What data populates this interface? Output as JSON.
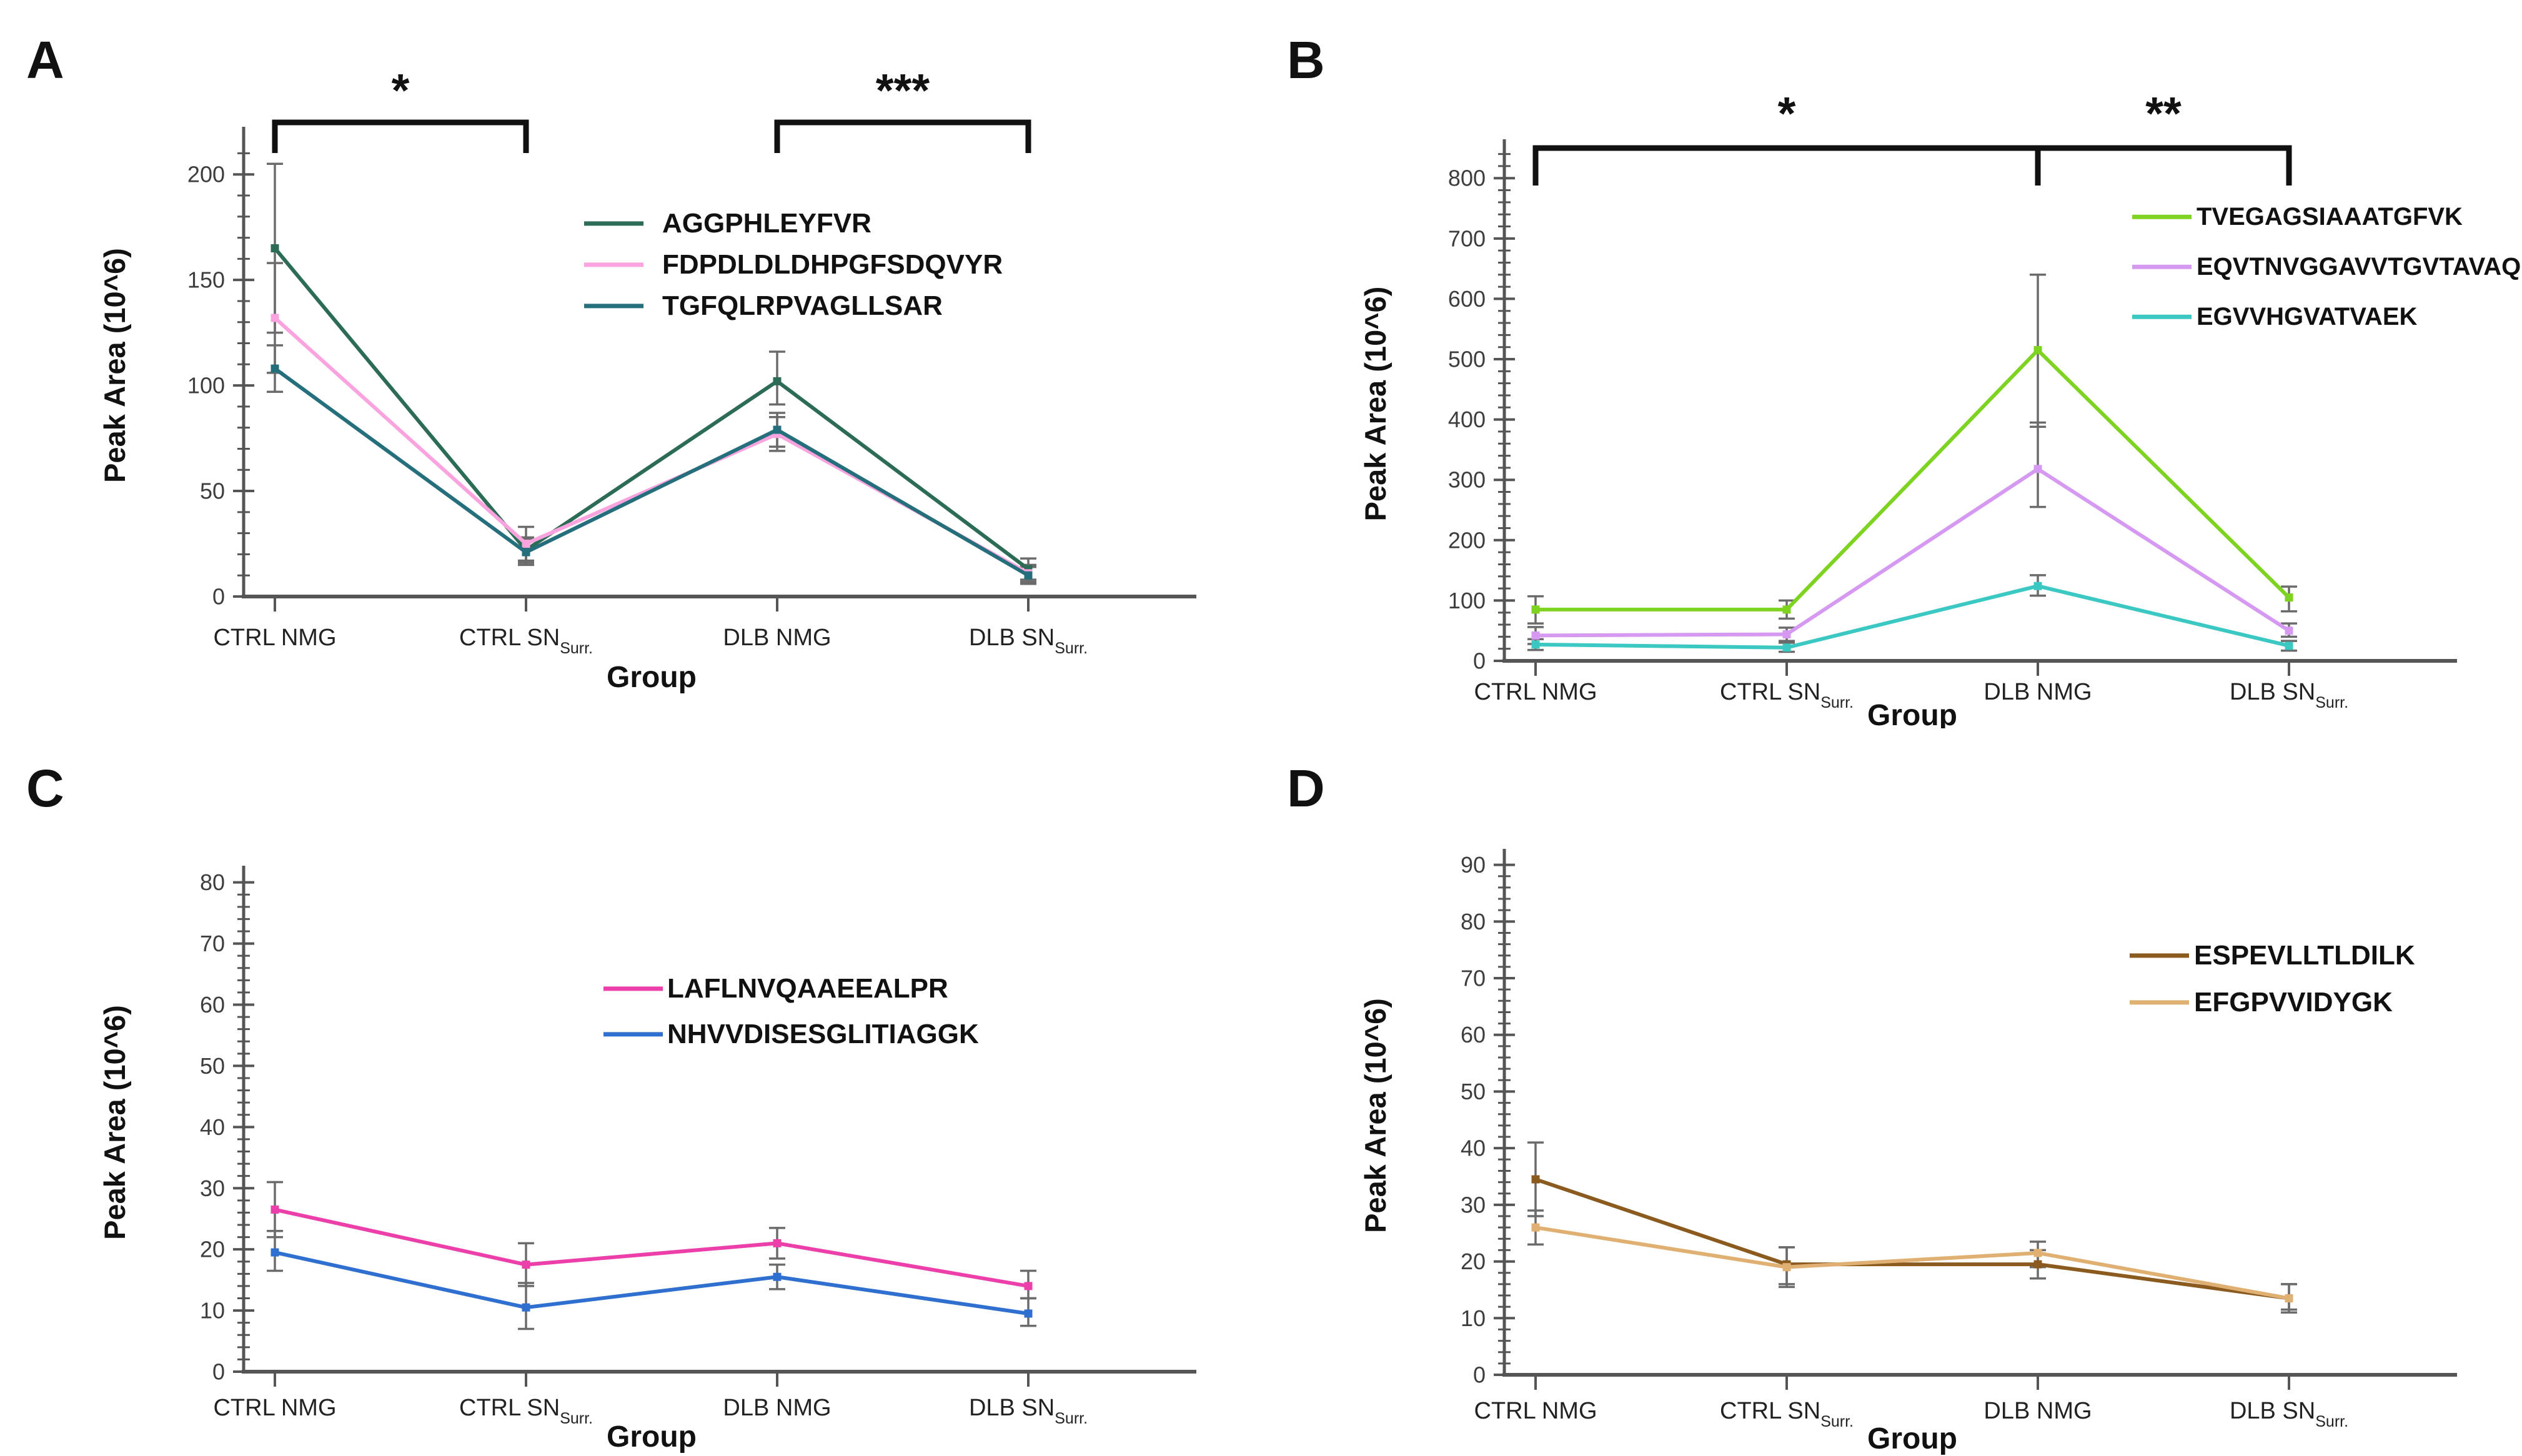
{
  "figure": {
    "ylabel": "Peak Area (10^6)",
    "xlabel": "Group",
    "categories": [
      {
        "label": "CTRL NMG",
        "sub": ""
      },
      {
        "label": "CTRL SN",
        "sub": "Surr."
      },
      {
        "label": "DLB NMG",
        "sub": ""
      },
      {
        "label": "DLB SN",
        "sub": "Surr."
      }
    ]
  },
  "chart_data": [
    {
      "panel": "A",
      "type": "line",
      "title": "",
      "xlabel": "Group",
      "ylabel": "Peak Area (10^6)",
      "categories": [
        "CTRL NMG",
        "CTRL SN Surr.",
        "DLB NMG",
        "DLB SN Surr."
      ],
      "ylim": [
        0,
        219
      ],
      "y_major_step": 50,
      "y_minor_step": 10,
      "y_max_label": 200,
      "grid": false,
      "legend_position": "upper right",
      "series": [
        {
          "name": "AGGPHLEYFVR",
          "color": "#2C6B56",
          "values": [
            165,
            22,
            102,
            13
          ],
          "err_lo": [
            125,
            16,
            91,
            8
          ],
          "err_hi": [
            205,
            28,
            116,
            18
          ]
        },
        {
          "name": "FDPDLDLDHPGFSDQVYR",
          "color": "#FBA3DE",
          "values": [
            132,
            25,
            77,
            11
          ],
          "err_lo": [
            106,
            17,
            69,
            7
          ],
          "err_hi": [
            158,
            33,
            85,
            15
          ]
        },
        {
          "name": "TGFQLRPVAGLLSAR",
          "color": "#256F7D",
          "values": [
            108,
            21,
            79,
            10
          ],
          "err_lo": [
            97,
            15,
            71,
            6
          ],
          "err_hi": [
            119,
            27,
            87,
            14
          ]
        }
      ],
      "significance": [
        {
          "from": 0,
          "to": 1,
          "label": "*"
        },
        {
          "from": 2,
          "to": 3,
          "label": "***"
        }
      ]
    },
    {
      "panel": "B",
      "type": "line",
      "title": "",
      "xlabel": "Group",
      "ylabel": "Peak Area (10^6)",
      "categories": [
        "CTRL NMG",
        "CTRL SN Surr.",
        "DLB NMG",
        "DLB SN Surr."
      ],
      "ylim": [
        0,
        852
      ],
      "y_major_step": 100,
      "y_minor_step": 20,
      "y_max_label": 800,
      "grid": false,
      "legend_position": "upper right",
      "series": [
        {
          "name": "TVEGAGSIAAATGFVK",
          "color": "#7ED321",
          "values": [
            85,
            85,
            515,
            105
          ],
          "err_lo": [
            62,
            70,
            388,
            82
          ],
          "err_hi": [
            107,
            100,
            640,
            123
          ]
        },
        {
          "name": "EQVTNVGGAVVTGVTAVAQK",
          "color": "#D699F2",
          "values": [
            42,
            44,
            318,
            50
          ],
          "err_lo": [
            28,
            33,
            255,
            40
          ],
          "err_hi": [
            56,
            55,
            395,
            62
          ]
        },
        {
          "name": "EGVVHGVATVAEK",
          "color": "#3BC8C3",
          "values": [
            27,
            22,
            124,
            25
          ],
          "err_lo": [
            18,
            15,
            108,
            17
          ],
          "err_hi": [
            36,
            30,
            142,
            33
          ]
        }
      ],
      "significance": [
        {
          "from": 0,
          "to": 2,
          "label": "*"
        },
        {
          "from": 2,
          "to": 3,
          "label": "**"
        }
      ]
    },
    {
      "panel": "C",
      "type": "line",
      "title": "",
      "xlabel": "Group",
      "ylabel": "Peak Area (10^6)",
      "categories": [
        "CTRL NMG",
        "CTRL SN Surr.",
        "DLB NMG",
        "DLB SN Surr."
      ],
      "ylim": [
        0,
        81.5
      ],
      "y_major_step": 10,
      "y_minor_step": 2,
      "y_max_label": 80,
      "grid": false,
      "legend_position": "upper right",
      "series": [
        {
          "name": "LAFLNVQAAEEALPR",
          "color": "#EC3FA9",
          "values": [
            26.5,
            17.5,
            21,
            14
          ],
          "err_lo": [
            22,
            14,
            18.5,
            12
          ],
          "err_hi": [
            31,
            21,
            23.5,
            16.5
          ]
        },
        {
          "name": "NHVVDISESGLITIAGGK",
          "color": "#2F6FD0",
          "values": [
            19.5,
            10.5,
            15.5,
            9.5
          ],
          "err_lo": [
            16.5,
            7,
            13.5,
            7.5
          ],
          "err_hi": [
            23,
            14.5,
            17.5,
            12
          ]
        }
      ],
      "significance": []
    },
    {
      "panel": "D",
      "type": "line",
      "title": "",
      "xlabel": "Group",
      "ylabel": "Peak Area (10^6)",
      "categories": [
        "CTRL NMG",
        "CTRL SN Surr.",
        "DLB NMG",
        "DLB SN Surr."
      ],
      "ylim": [
        0,
        91.5
      ],
      "y_major_step": 10,
      "y_minor_step": 2,
      "y_max_label": 90,
      "grid": false,
      "legend_position": "upper right",
      "series": [
        {
          "name": "ESPEVLLTLDILK",
          "color": "#8A5A1E",
          "values": [
            34.5,
            19.5,
            19.5,
            13.5
          ],
          "err_lo": [
            28,
            16,
            17,
            11.5
          ],
          "err_hi": [
            41,
            22.5,
            22,
            16
          ]
        },
        {
          "name": "EFGPVVIDYGK",
          "color": "#DFB071",
          "values": [
            26,
            19,
            21.5,
            13.5
          ],
          "err_lo": [
            23,
            15.5,
            19,
            11
          ],
          "err_hi": [
            29,
            22.5,
            23.5,
            16
          ]
        }
      ],
      "significance": []
    }
  ],
  "style_colors": {
    "axis": "#555555",
    "tick_label": "#3d3d3d",
    "error_bar": "#6b6b6b",
    "significance": "#111111",
    "text": "#111111"
  }
}
